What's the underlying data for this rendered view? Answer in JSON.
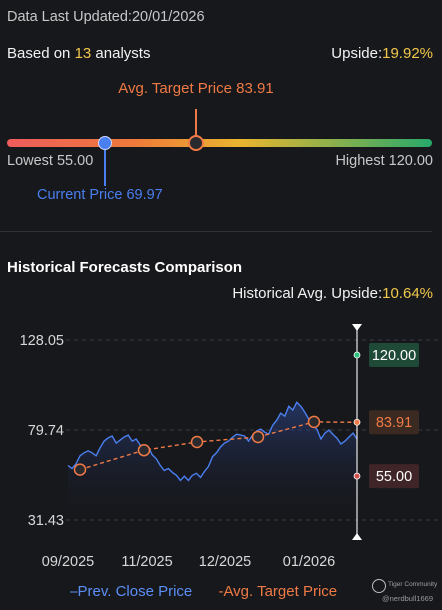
{
  "header": {
    "updated_label": "Data Last Updated:",
    "updated_date": "20/01/2026",
    "based_prefix": "Based on ",
    "analyst_count": "13",
    "based_suffix": " analysts",
    "upside_label": "Upside:",
    "upside_value": "19.92%"
  },
  "range_gauge": {
    "avg_target_label": "Avg. Target Price 83.91",
    "lowest_label": "Lowest 55.00",
    "highest_label": "Highest 120.00",
    "current_label": "Current Price 69.97",
    "lowest": 55.0,
    "highest": 120.0,
    "current": 69.97,
    "avg_target": 83.91,
    "colors": {
      "current": "#4a7ff0",
      "target": "#f07a45"
    }
  },
  "historical": {
    "title": "Historical Forecasts Comparison",
    "upside_label": "Historical Avg. Upside:",
    "upside_value": "10.64%"
  },
  "legend": {
    "close_label": "Prev. Close Price",
    "target_label": "Avg. Target Price"
  },
  "branding": {
    "name": "Tiger Community",
    "user": "@nerdbull1669"
  },
  "chart_data": {
    "type": "line",
    "x_ticks": [
      "09/2025",
      "11/2025",
      "12/2025",
      "01/2026"
    ],
    "y_ticks": [
      "128.05",
      "79.74",
      "31.43"
    ],
    "ylim": [
      31.43,
      128.05
    ],
    "grid": true,
    "series": [
      {
        "name": "Prev. Close Price",
        "color": "#4a7ff0",
        "values": [
          60.7,
          59.1,
          61.6,
          65.9,
          67.5,
          68.5,
          67.5,
          65.9,
          70.2,
          73.8,
          75.5,
          76.5,
          72.7,
          74.3,
          76.0,
          77.0,
          73.8,
          74.9,
          71.6,
          71.6,
          70.6,
          66.4,
          64.3,
          60.7,
          58.0,
          59.1,
          57.0,
          55.4,
          52.7,
          54.9,
          52.7,
          55.4,
          56.5,
          54.3,
          57.5,
          60.2,
          65.4,
          67.5,
          70.6,
          72.7,
          73.8,
          75.9,
          77.5,
          77.0,
          76.5,
          73.8,
          77.0,
          79.2,
          80.2,
          78.6,
          77.5,
          82.3,
          85.0,
          88.8,
          87.2,
          92.5,
          90.4,
          94.6,
          92.5,
          89.3,
          85.6,
          82.3,
          80.2,
          74.9,
          78.1,
          79.7,
          77.5,
          75.4,
          72.2,
          73.8,
          76.0,
          78.1,
          74.9
        ]
      },
      {
        "name": "Avg. Target Price",
        "color": "#f07a45",
        "values": [
          58.5,
          68.9,
          73.3,
          76.0,
          84.1,
          83.9
        ]
      }
    ],
    "current_markers": {
      "high": "120.00",
      "target": "83.91",
      "low": "55.00"
    }
  }
}
